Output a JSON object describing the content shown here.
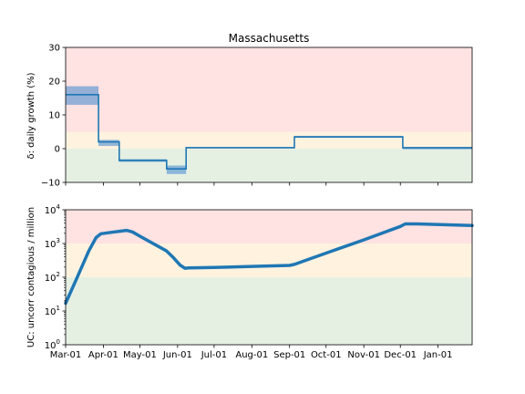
{
  "colors": {
    "line": "#1f77b4",
    "band": "#4c8fd0",
    "zone_red": "#ffe2e2",
    "zone_yellow": "#fff3e0",
    "zone_green": "#e5f0e3"
  },
  "chart_data": [
    {
      "type": "line",
      "title": "Massachusetts",
      "ylabel": "δ: daily growth (%)",
      "x_range": [
        "2020-03-01",
        "2021-01-29"
      ],
      "ylim": [
        -10,
        30
      ],
      "yticks": [
        "30",
        "20",
        "10",
        "0",
        "−10"
      ],
      "ytick_values": [
        30,
        20,
        10,
        0,
        -10
      ],
      "zones": [
        {
          "name": "red",
          "from": 5,
          "to": 30
        },
        {
          "name": "yellow",
          "from": 0,
          "to": 5
        },
        {
          "name": "green",
          "from": -10,
          "to": 0
        }
      ],
      "series": [
        {
          "kind": "step",
          "points": [
            [
              "2020-03-01",
              16
            ],
            [
              "2020-03-28",
              16
            ],
            [
              "2020-03-28",
              2
            ],
            [
              "2020-04-14",
              2
            ],
            [
              "2020-04-14",
              -3.5
            ],
            [
              "2020-05-23",
              -3.5
            ],
            [
              "2020-05-23",
              -6
            ],
            [
              "2020-06-08",
              -6
            ],
            [
              "2020-06-08",
              0.3
            ],
            [
              "2020-09-05",
              0.3
            ],
            [
              "2020-09-05",
              3.5
            ],
            [
              "2020-12-03",
              3.5
            ],
            [
              "2020-12-03",
              0.3
            ],
            [
              "2021-01-29",
              0.3
            ]
          ]
        }
      ],
      "bands": [
        {
          "from": "2020-03-01",
          "to": "2020-03-28",
          "low": 13,
          "high": 18.5
        },
        {
          "from": "2020-03-28",
          "to": "2020-04-14",
          "low": 0.8,
          "high": 2.6
        },
        {
          "from": "2020-04-14",
          "to": "2020-05-23",
          "low": -3.9,
          "high": -3.1
        },
        {
          "from": "2020-05-23",
          "to": "2020-06-08",
          "low": -7.5,
          "high": -5
        },
        {
          "from": "2020-06-08",
          "to": "2020-09-05",
          "low": 0.1,
          "high": 0.5
        },
        {
          "from": "2020-09-05",
          "to": "2020-12-03",
          "low": 3.2,
          "high": 3.8
        },
        {
          "from": "2020-12-03",
          "to": "2021-01-29",
          "low": -0.2,
          "high": 0.5
        }
      ]
    },
    {
      "type": "line",
      "ylabel": "UC: uncorr contagious / million",
      "yscale": "log",
      "x_range": [
        "2020-03-01",
        "2021-01-29"
      ],
      "ylim": [
        1,
        10000
      ],
      "yticks": [
        {
          "base": "10",
          "exp": "0",
          "value": 1
        },
        {
          "base": "10",
          "exp": "1",
          "value": 10
        },
        {
          "base": "10",
          "exp": "2",
          "value": 100
        },
        {
          "base": "10",
          "exp": "3",
          "value": 1000
        },
        {
          "base": "10",
          "exp": "4",
          "value": 10000
        }
      ],
      "zones": [
        {
          "name": "red",
          "from": 1000,
          "to": 10000
        },
        {
          "name": "yellow",
          "from": 100,
          "to": 1000
        },
        {
          "name": "green",
          "from": 1,
          "to": 100
        }
      ],
      "xticks": [
        {
          "label": "Mar-01",
          "date": "2020-03-01"
        },
        {
          "label": "Apr-01",
          "date": "2020-04-01"
        },
        {
          "label": "May-01",
          "date": "2020-05-01"
        },
        {
          "label": "Jun-01",
          "date": "2020-06-01"
        },
        {
          "label": "Jul-01",
          "date": "2020-07-01"
        },
        {
          "label": "Aug-01",
          "date": "2020-08-01"
        },
        {
          "label": "Sep-01",
          "date": "2020-09-01"
        },
        {
          "label": "Oct-01",
          "date": "2020-10-01"
        },
        {
          "label": "Nov-01",
          "date": "2020-11-01"
        },
        {
          "label": "Dec-01",
          "date": "2020-12-01"
        },
        {
          "label": "Jan-01",
          "date": "2021-01-01"
        }
      ],
      "series": [
        {
          "kind": "line",
          "points": [
            [
              "2020-03-01",
              17
            ],
            [
              "2020-03-10",
              90
            ],
            [
              "2020-03-20",
              600
            ],
            [
              "2020-03-26",
              1500
            ],
            [
              "2020-03-30",
              1950
            ],
            [
              "2020-04-10",
              2200
            ],
            [
              "2020-04-20",
              2450
            ],
            [
              "2020-04-25",
              2200
            ],
            [
              "2020-05-01",
              1650
            ],
            [
              "2020-05-23",
              600
            ],
            [
              "2020-05-28",
              400
            ],
            [
              "2020-06-03",
              230
            ],
            [
              "2020-06-07",
              185
            ],
            [
              "2020-06-10",
              190
            ],
            [
              "2020-07-01",
              195
            ],
            [
              "2020-08-01",
              210
            ],
            [
              "2020-09-01",
              225
            ],
            [
              "2020-09-05",
              240
            ],
            [
              "2020-10-01",
              520
            ],
            [
              "2020-11-01",
              1280
            ],
            [
              "2020-12-01",
              3200
            ],
            [
              "2020-12-05",
              3800
            ],
            [
              "2020-12-15",
              3800
            ],
            [
              "2021-01-29",
              3400
            ]
          ]
        }
      ]
    }
  ]
}
